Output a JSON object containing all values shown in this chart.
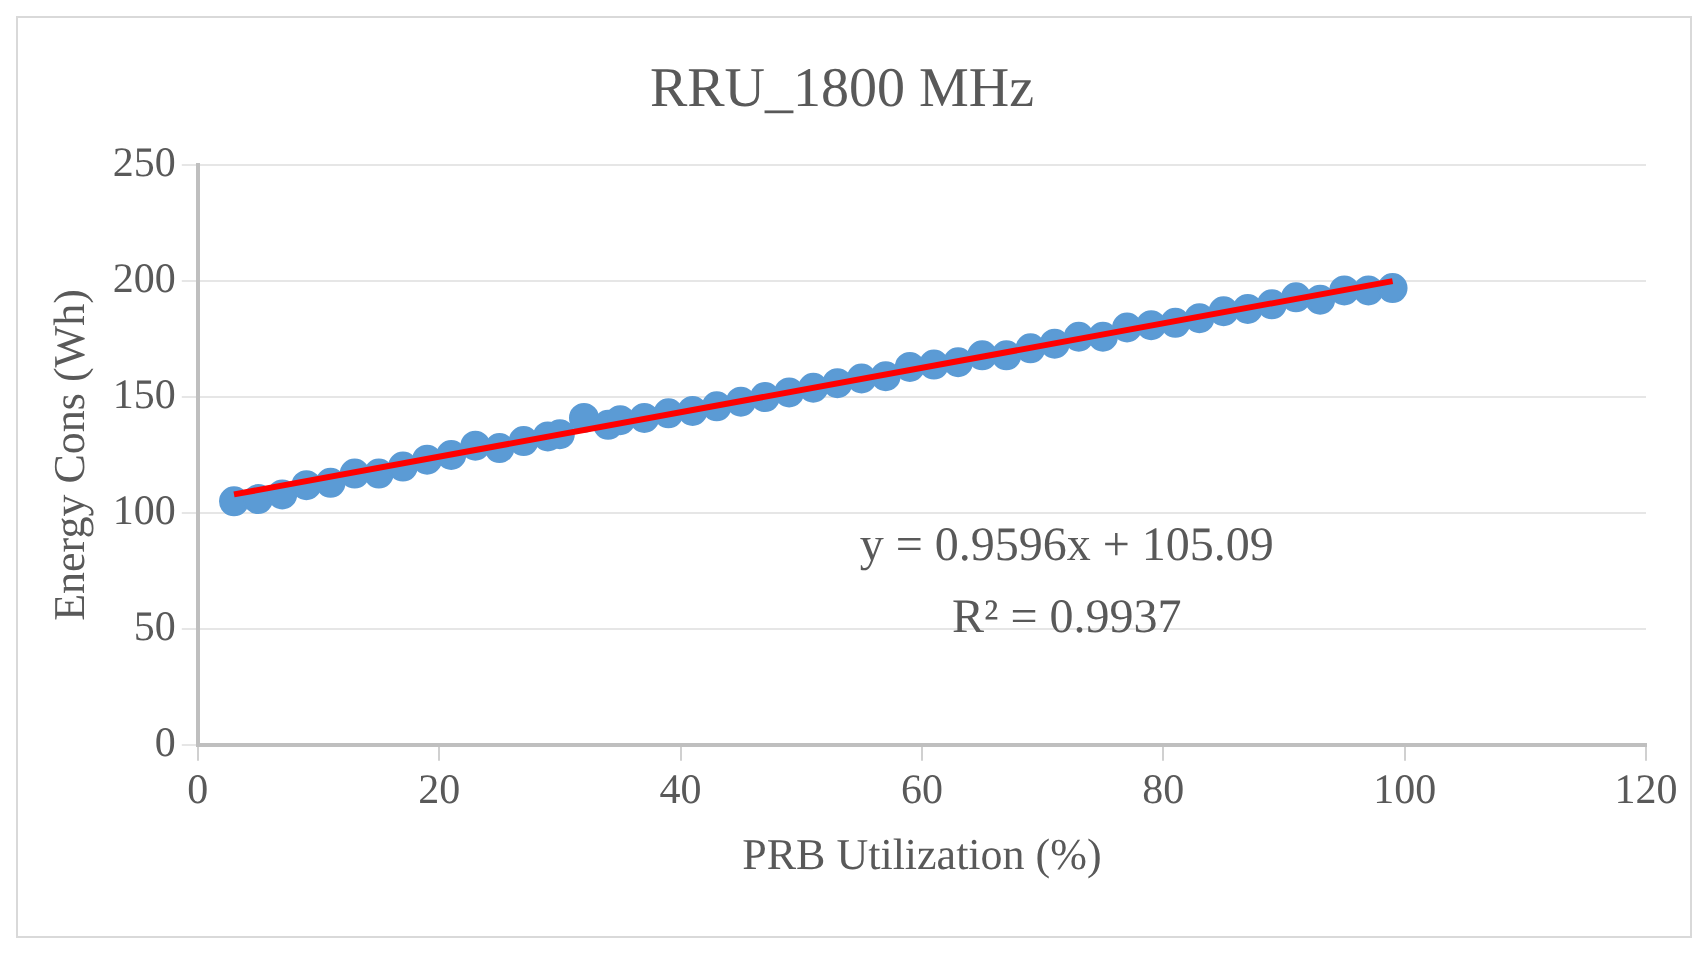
{
  "chart_data": {
    "type": "scatter",
    "title": "RRU_1800 MHz",
    "xlabel": "PRB Utilization (%)",
    "ylabel": "Energy Cons (Wh)",
    "xlim": [
      0,
      120
    ],
    "xticks": [
      0,
      20,
      40,
      60,
      80,
      100,
      120
    ],
    "ylim": [
      0,
      250
    ],
    "yticks": [
      0,
      50,
      100,
      150,
      200,
      250
    ],
    "grid": "y",
    "legend": false,
    "series": [
      {
        "color": "#5b9bd5",
        "marker": "circle",
        "x": [
          3,
          5,
          7,
          9,
          11,
          13,
          15,
          17,
          19,
          21,
          23,
          25,
          27,
          29,
          30,
          32,
          34,
          35,
          37,
          39,
          41,
          43,
          45,
          47,
          49,
          51,
          53,
          55,
          57,
          59,
          61,
          63,
          65,
          67,
          69,
          71,
          73,
          75,
          77,
          79,
          81,
          83,
          85,
          87,
          89,
          91,
          93,
          95,
          97,
          99
        ],
        "values": [
          105,
          106,
          108,
          112,
          113,
          117,
          117,
          120,
          123,
          125,
          129,
          128,
          131,
          133,
          134,
          141,
          138,
          140,
          141,
          143,
          144,
          146,
          148,
          150,
          152,
          154,
          156,
          158,
          159,
          163,
          164,
          165,
          168,
          168,
          171,
          173,
          176,
          176,
          180,
          181,
          182,
          184,
          187,
          188,
          190,
          193,
          192,
          196,
          196,
          197
        ]
      },
      {
        "type": "line",
        "color": "#ff0000",
        "x": [
          3,
          99
        ],
        "values": [
          108,
          200
        ]
      }
    ],
    "annotations": [
      "y = 0.9596x + 105.09",
      "R² = 0.9937"
    ]
  }
}
